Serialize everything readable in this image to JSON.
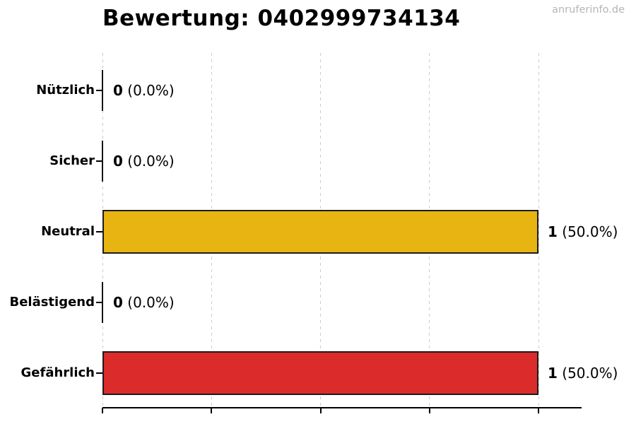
{
  "watermark": "anruferinfo.de",
  "chart_data": {
    "type": "bar",
    "orientation": "horizontal",
    "title": "Bewertung: 0402999734134",
    "categories": [
      "Nützlich",
      "Sicher",
      "Neutral",
      "Belästigend",
      "Gefährlich"
    ],
    "values": [
      0,
      0,
      1,
      0,
      1
    ],
    "percentages": [
      0.0,
      0.0,
      50.0,
      0.0,
      50.0
    ],
    "value_labels": [
      "0 (0.0%)",
      "0 (0.0%)",
      "1 (50.0%)",
      "0 (0.0%)",
      "1 (50.0%)"
    ],
    "bar_colors": [
      "none",
      "none",
      "#e8b412",
      "none",
      "#db2b2b"
    ],
    "bar_edge_color": "#1c1c1c",
    "xlim": [
      0,
      1.1
    ],
    "grid_x": [
      0,
      0.25,
      0.5,
      0.75,
      1.0
    ],
    "grid": true,
    "grid_style": "dashed",
    "grid_color": "#cbcbcb",
    "background_color": "#ffffff",
    "watermark_color": "#b5b5b5",
    "xlabel": "",
    "ylabel": "",
    "x_tick_labels": []
  }
}
